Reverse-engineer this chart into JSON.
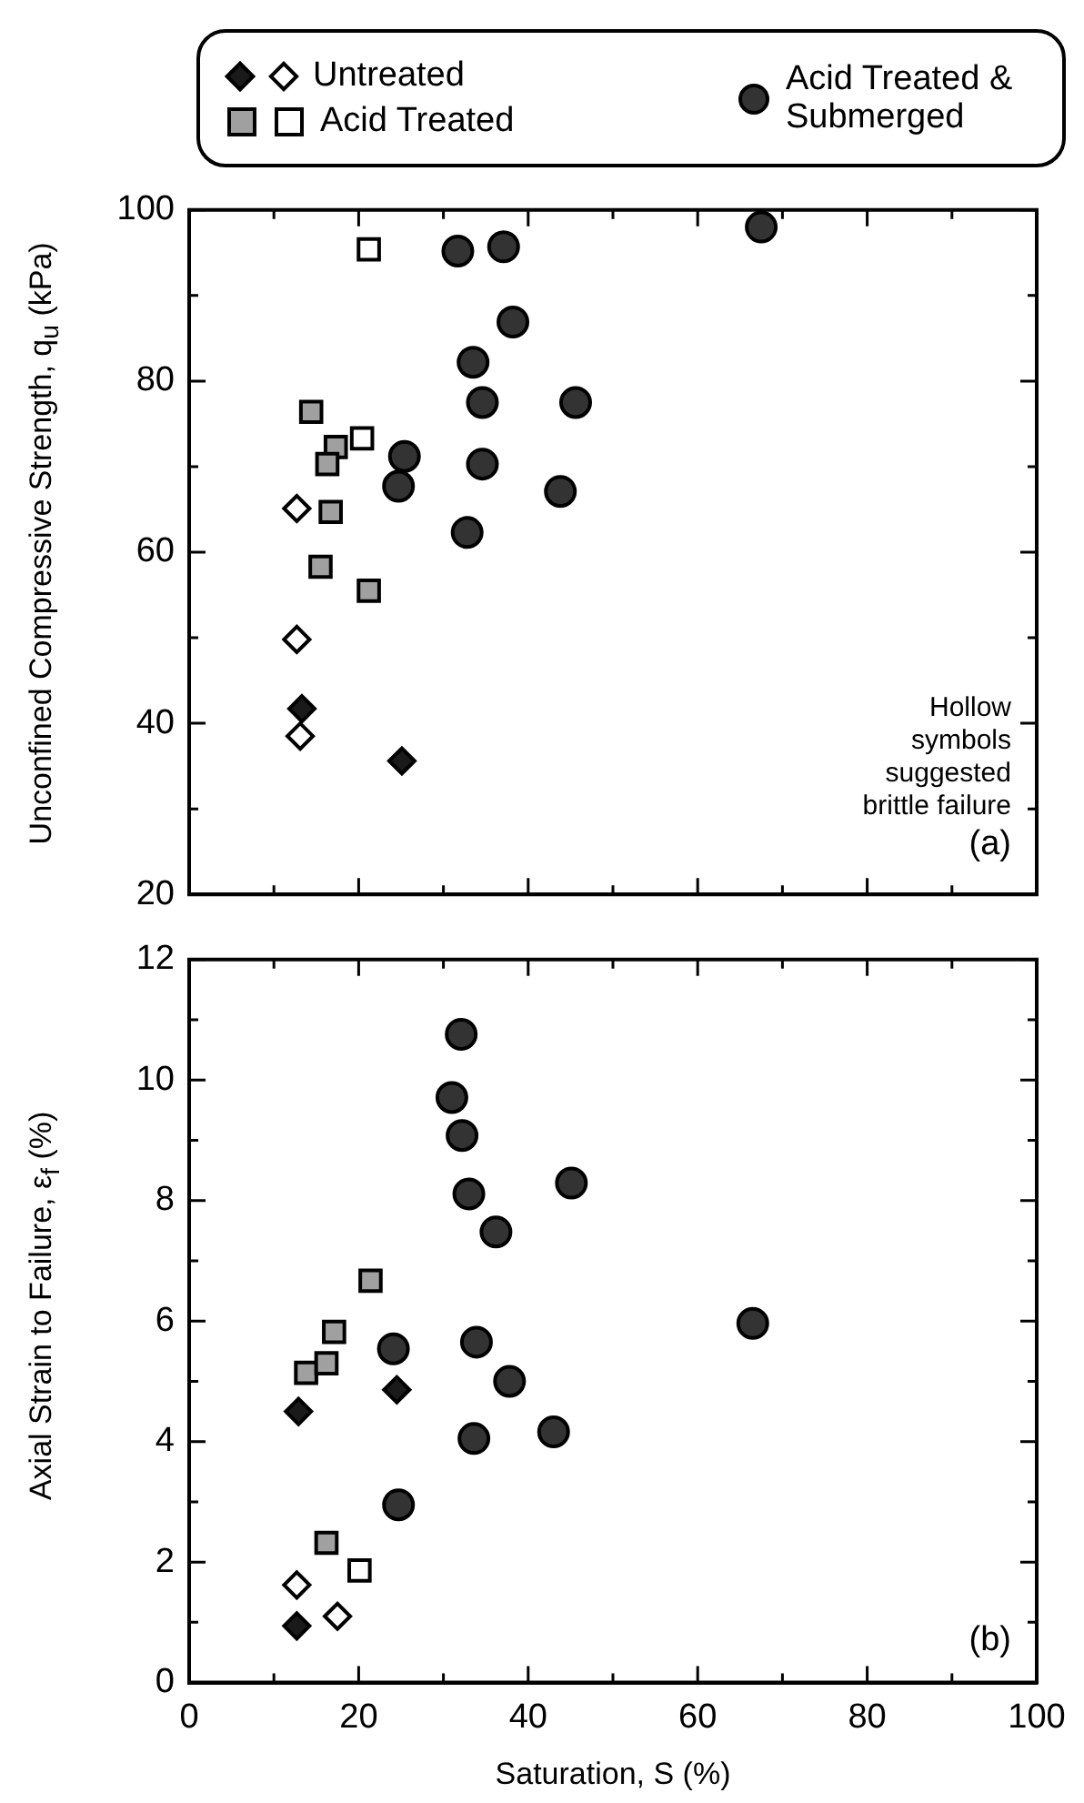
{
  "chart_data": [
    {
      "type": "scatter",
      "ylabel": "Unconfined Compressive Strength, q$_{u}$ (kPa)",
      "legend": "top",
      "tick_labels": "y",
      "xlim": [
        0,
        100
      ],
      "ylim": [
        20,
        100
      ],
      "xticks": [
        0,
        {
          "value": 10,
          "label": null
        },
        20,
        {
          "value": 30,
          "label": null
        },
        40,
        {
          "value": 50,
          "label": null
        },
        60,
        {
          "value": 70,
          "label": null
        },
        80,
        {
          "value": 90,
          "label": null
        },
        100
      ],
      "yticks": [
        20,
        {
          "value": 30,
          "label": null
        },
        40,
        {
          "value": 50,
          "label": null
        },
        60,
        {
          "value": 70,
          "label": null
        },
        80,
        {
          "value": 90,
          "label": null
        },
        100
      ],
      "annotations": [
        "Hollow symbols suggested brittle failure",
        "(a)"
      ],
      "series": [
        {
          "name": "Untreated",
          "marker": "diamond",
          "color": "#1a1a1a",
          "x": [
            13.3,
            25.1
          ],
          "values": [
            41.7,
            35.6
          ]
        },
        {
          "marker": "diamond",
          "color": "#ffffff",
          "x": [
            12.7,
            12.7,
            13.1
          ],
          "values": [
            65.1,
            49.8,
            38.5
          ]
        },
        {
          "name": "Acid Treated",
          "marker": "square",
          "color": "#a0a0a0",
          "x": [
            14.4,
            17.3,
            16.3,
            16.7,
            15.5,
            21.2
          ],
          "values": [
            76.4,
            72.3,
            70.3,
            64.7,
            58.3,
            55.5
          ]
        },
        {
          "marker": "square",
          "color": "#ffffff",
          "x": [
            21.2,
            20.4
          ],
          "values": [
            95.4,
            73.3
          ]
        },
        {
          "name": "Acid Treated & Submerged",
          "marker": "circle",
          "color": "#333333",
          "x": [
            31.7,
            37.1,
            38.2,
            33.5,
            34.6,
            45.6,
            25.4,
            24.7,
            34.6,
            43.8,
            32.8,
            67.5
          ],
          "values": [
            95.2,
            95.7,
            86.9,
            82.2,
            77.5,
            77.5,
            71.2,
            67.7,
            70.3,
            67.1,
            62.3,
            98
          ]
        }
      ]
    },
    {
      "type": "scatter",
      "ylabel": "Axial Strain to Failure, ε$_{f}$ (%)",
      "xlabel": "Saturation, S (%)",
      "xlim": [
        0,
        100
      ],
      "ylim": [
        0,
        12
      ],
      "xticks": [
        0,
        {
          "value": 10,
          "label": null
        },
        20,
        {
          "value": 30,
          "label": null
        },
        40,
        {
          "value": 50,
          "label": null
        },
        60,
        {
          "value": 70,
          "label": null
        },
        80,
        {
          "value": 90,
          "label": null
        },
        100
      ],
      "yticks": [
        0,
        {
          "value": 1,
          "label": null
        },
        2,
        {
          "value": 3,
          "label": null
        },
        4,
        {
          "value": 5,
          "label": null
        },
        6,
        {
          "value": 7,
          "label": null
        },
        8,
        {
          "value": 9,
          "label": null
        },
        10,
        {
          "value": 11,
          "label": null
        },
        12
      ],
      "annotations": [
        "(b)"
      ],
      "series": [
        {
          "marker": "diamond",
          "color": "#1a1a1a",
          "x": [
            12.9,
            24.5,
            12.7
          ],
          "values": [
            4.5,
            4.86,
            0.94
          ]
        },
        {
          "marker": "diamond",
          "color": "#ffffff",
          "x": [
            12.7,
            17.5
          ],
          "values": [
            1.62,
            1.1
          ]
        },
        {
          "marker": "square",
          "color": "#a0a0a0",
          "x": [
            13.8,
            16.2,
            17.1,
            21.4,
            16.2
          ],
          "values": [
            5.14,
            5.3,
            5.82,
            6.67,
            2.32
          ]
        },
        {
          "marker": "square",
          "color": "#ffffff",
          "x": [
            20.1
          ],
          "values": [
            1.86
          ]
        },
        {
          "marker": "circle",
          "color": "#333333",
          "x": [
            32.1,
            31.0,
            32.2,
            33.0,
            36.2,
            45.1,
            24.1,
            33.9,
            37.8,
            33.6,
            43.0,
            24.7,
            66.5
          ],
          "values": [
            10.76,
            9.71,
            9.08,
            8.11,
            7.48,
            8.29,
            5.54,
            5.65,
            5.0,
            4.05,
            4.16,
            2.95,
            5.96
          ]
        }
      ]
    }
  ]
}
